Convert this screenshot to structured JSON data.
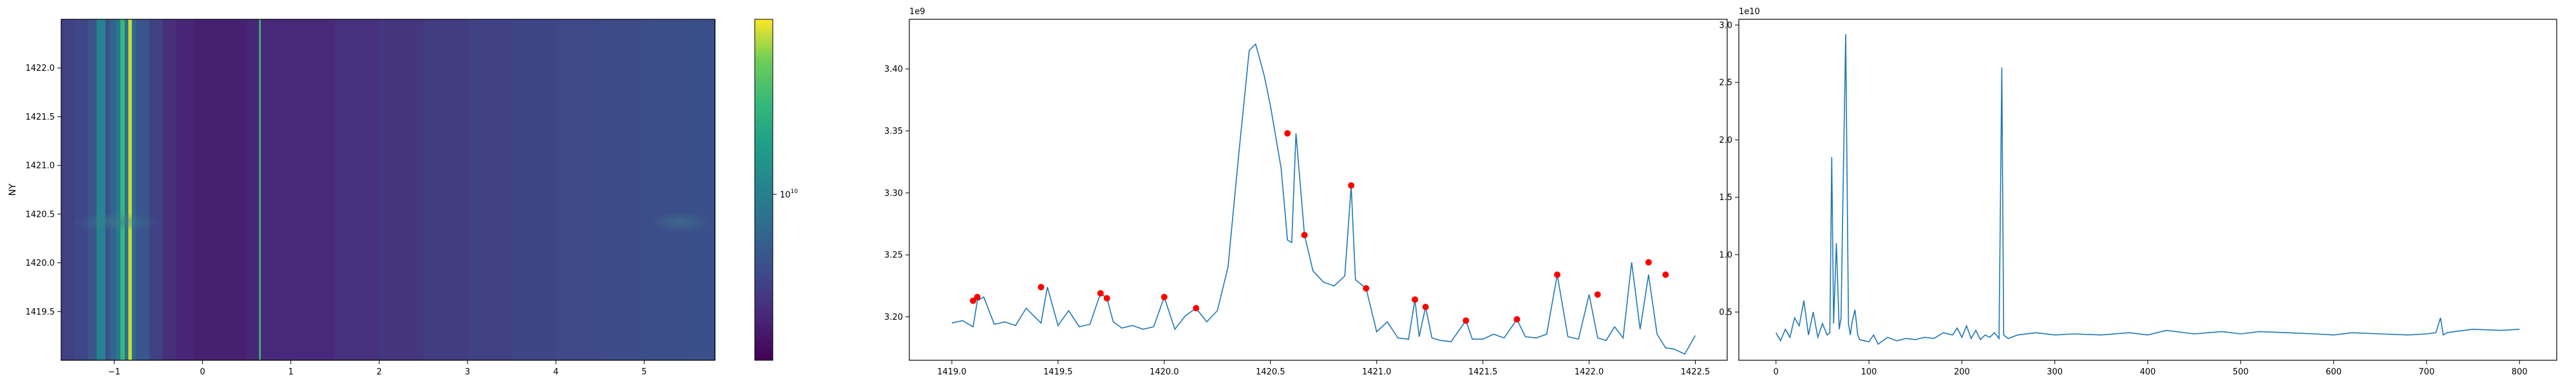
{
  "colors": {
    "line": "#1f77b4",
    "peak_marker": "#ff0000",
    "axis": "#000000",
    "colormap": "viridis"
  },
  "chart_data": [
    {
      "type": "heatmap",
      "colormap": "viridis",
      "ylabel": "NY",
      "xlabel": "",
      "title": "",
      "xlim": [
        -1.6,
        5.8
      ],
      "ylim": [
        1419.0,
        1422.5
      ],
      "xticks": [
        -1,
        0,
        1,
        2,
        3,
        4,
        5
      ],
      "yticks": [
        1419.5,
        1420.0,
        1420.5,
        1421.0,
        1421.5,
        1422.0
      ],
      "xtick_labels": [
        "−1",
        "0",
        "1",
        "2",
        "3",
        "4",
        "5"
      ],
      "ytick_labels": [
        "1419.5",
        "1420.0",
        "1420.5",
        "1421.0",
        "1421.5",
        "1422.0"
      ],
      "column_levels": [
        [
          -1.6,
          0.22
        ],
        [
          -1.45,
          0.24
        ],
        [
          -1.3,
          0.3
        ],
        [
          -1.2,
          0.5
        ],
        [
          -1.1,
          0.28
        ],
        [
          -1.05,
          0.36
        ],
        [
          -0.98,
          0.45
        ],
        [
          -0.93,
          0.75
        ],
        [
          -0.88,
          0.4
        ],
        [
          -0.84,
          0.95
        ],
        [
          -0.8,
          0.38
        ],
        [
          -0.75,
          0.3
        ],
        [
          -0.6,
          0.22
        ],
        [
          -0.45,
          0.15
        ],
        [
          -0.3,
          0.12
        ],
        [
          -0.1,
          0.1
        ],
        [
          0.2,
          0.1
        ],
        [
          0.5,
          0.12
        ],
        [
          0.62,
          0.12
        ],
        [
          0.64,
          0.75
        ],
        [
          0.66,
          0.13
        ],
        [
          0.9,
          0.13
        ],
        [
          1.5,
          0.16
        ],
        [
          2.0,
          0.18
        ],
        [
          2.5,
          0.2
        ],
        [
          3.0,
          0.22
        ],
        [
          3.5,
          0.24
        ],
        [
          4.0,
          0.25
        ],
        [
          4.5,
          0.26
        ],
        [
          5.0,
          0.27
        ],
        [
          5.5,
          0.28
        ],
        [
          5.8,
          0.28
        ]
      ],
      "colorbar": {
        "tick_label": "10",
        "tick_exponent": "10"
      }
    },
    {
      "type": "line",
      "title": "",
      "xlabel": "",
      "ylabel": "",
      "offset_label": "1e9",
      "xlim": [
        1418.8,
        1422.65
      ],
      "ylim": [
        3.165,
        3.44
      ],
      "xticks": [
        1419.0,
        1419.5,
        1420.0,
        1420.5,
        1421.0,
        1421.5,
        1422.0,
        1422.5
      ],
      "yticks": [
        3.2,
        3.25,
        3.3,
        3.35,
        3.4
      ],
      "xtick_labels": [
        "1419.0",
        "1419.5",
        "1420.0",
        "1420.5",
        "1421.0",
        "1421.5",
        "1422.0",
        "1422.5"
      ],
      "ytick_labels": [
        "3.20",
        "3.25",
        "3.30",
        "3.35",
        "3.40"
      ],
      "series": [
        {
          "x": [
            1419.0,
            1419.05,
            1419.1,
            1419.12,
            1419.15,
            1419.2,
            1419.25,
            1419.3,
            1419.35,
            1419.42,
            1419.45,
            1419.5,
            1419.55,
            1419.6,
            1419.65,
            1419.7,
            1419.73,
            1419.76,
            1419.8,
            1419.85,
            1419.9,
            1419.95,
            1420.0,
            1420.05,
            1420.1,
            1420.15,
            1420.2,
            1420.25,
            1420.3,
            1420.35,
            1420.4,
            1420.43,
            1420.47,
            1420.5,
            1420.55,
            1420.58,
            1420.6,
            1420.62,
            1420.66,
            1420.7,
            1420.75,
            1420.8,
            1420.85,
            1420.88,
            1420.9,
            1420.95,
            1421.0,
            1421.05,
            1421.1,
            1421.15,
            1421.18,
            1421.2,
            1421.23,
            1421.26,
            1421.3,
            1421.35,
            1421.42,
            1421.45,
            1421.5,
            1421.55,
            1421.6,
            1421.66,
            1421.7,
            1421.75,
            1421.8,
            1421.85,
            1421.9,
            1421.95,
            1422.0,
            1422.04,
            1422.08,
            1422.12,
            1422.16,
            1422.2,
            1422.24,
            1422.28,
            1422.32,
            1422.36,
            1422.4,
            1422.45,
            1422.5
          ],
          "y": [
            3.195,
            3.197,
            3.192,
            3.213,
            3.216,
            3.194,
            3.196,
            3.193,
            3.207,
            3.195,
            3.224,
            3.193,
            3.205,
            3.192,
            3.194,
            3.219,
            3.215,
            3.196,
            3.191,
            3.193,
            3.19,
            3.192,
            3.216,
            3.19,
            3.201,
            3.207,
            3.196,
            3.205,
            3.24,
            3.33,
            3.415,
            3.42,
            3.395,
            3.37,
            3.32,
            3.262,
            3.26,
            3.348,
            3.266,
            3.237,
            3.228,
            3.225,
            3.233,
            3.306,
            3.23,
            3.223,
            3.188,
            3.196,
            3.183,
            3.182,
            3.214,
            3.184,
            3.208,
            3.183,
            3.181,
            3.18,
            3.197,
            3.182,
            3.182,
            3.186,
            3.183,
            3.198,
            3.184,
            3.183,
            3.186,
            3.234,
            3.184,
            3.182,
            3.218,
            3.183,
            3.181,
            3.192,
            3.183,
            3.244,
            3.19,
            3.234,
            3.186,
            3.175,
            3.174,
            3.17,
            3.185
          ]
        }
      ],
      "peaks": {
        "x": [
          1419.1,
          1419.12,
          1419.42,
          1419.7,
          1419.73,
          1420.0,
          1420.15,
          1420.58,
          1420.66,
          1420.88,
          1420.95,
          1421.18,
          1421.23,
          1421.42,
          1421.66,
          1421.85,
          1422.04,
          1422.28,
          1422.36
        ],
        "y": [
          3.213,
          3.216,
          3.224,
          3.219,
          3.215,
          3.216,
          3.207,
          3.348,
          3.266,
          3.306,
          3.223,
          3.214,
          3.208,
          3.197,
          3.198,
          3.234,
          3.218,
          3.244,
          3.234
        ]
      }
    },
    {
      "type": "line",
      "title": "",
      "xlabel": "",
      "ylabel": "",
      "offset_label": "1e10",
      "xlim": [
        -40,
        840
      ],
      "ylim": [
        0.08,
        3.05
      ],
      "xticks": [
        0,
        100,
        200,
        300,
        400,
        500,
        600,
        700,
        800
      ],
      "yticks": [
        0.5,
        1.0,
        1.5,
        2.0,
        2.5,
        3.0
      ],
      "xtick_labels": [
        "0",
        "100",
        "200",
        "300",
        "400",
        "500",
        "600",
        "700",
        "800"
      ],
      "ytick_labels": [
        "0.5",
        "1.0",
        "1.5",
        "2.0",
        "2.5",
        "3.0"
      ],
      "series": [
        {
          "x": [
            0,
            5,
            10,
            15,
            20,
            25,
            30,
            35,
            40,
            45,
            50,
            55,
            58,
            60,
            62,
            65,
            68,
            70,
            72,
            75,
            78,
            80,
            82,
            85,
            88,
            90,
            95,
            100,
            105,
            110,
            120,
            130,
            140,
            150,
            160,
            170,
            180,
            190,
            195,
            200,
            205,
            210,
            215,
            220,
            225,
            230,
            235,
            240,
            243,
            245,
            248,
            250,
            260,
            280,
            300,
            320,
            350,
            380,
            400,
            420,
            450,
            480,
            500,
            520,
            550,
            580,
            600,
            620,
            650,
            680,
            700,
            710,
            715,
            718,
            722,
            730,
            750,
            780,
            800
          ],
          "y": [
            0.32,
            0.25,
            0.35,
            0.28,
            0.45,
            0.38,
            0.6,
            0.3,
            0.5,
            0.28,
            0.4,
            0.3,
            0.32,
            1.85,
            0.4,
            1.1,
            0.35,
            0.45,
            1.45,
            2.92,
            0.4,
            0.3,
            0.42,
            0.52,
            0.3,
            0.26,
            0.25,
            0.24,
            0.3,
            0.22,
            0.28,
            0.25,
            0.27,
            0.26,
            0.28,
            0.27,
            0.32,
            0.3,
            0.36,
            0.28,
            0.38,
            0.27,
            0.34,
            0.26,
            0.3,
            0.28,
            0.32,
            0.27,
            2.63,
            0.3,
            0.28,
            0.27,
            0.3,
            0.32,
            0.3,
            0.31,
            0.3,
            0.32,
            0.3,
            0.34,
            0.31,
            0.33,
            0.31,
            0.33,
            0.32,
            0.31,
            0.3,
            0.32,
            0.31,
            0.3,
            0.31,
            0.32,
            0.45,
            0.3,
            0.32,
            0.33,
            0.35,
            0.34,
            0.35
          ]
        }
      ]
    }
  ]
}
